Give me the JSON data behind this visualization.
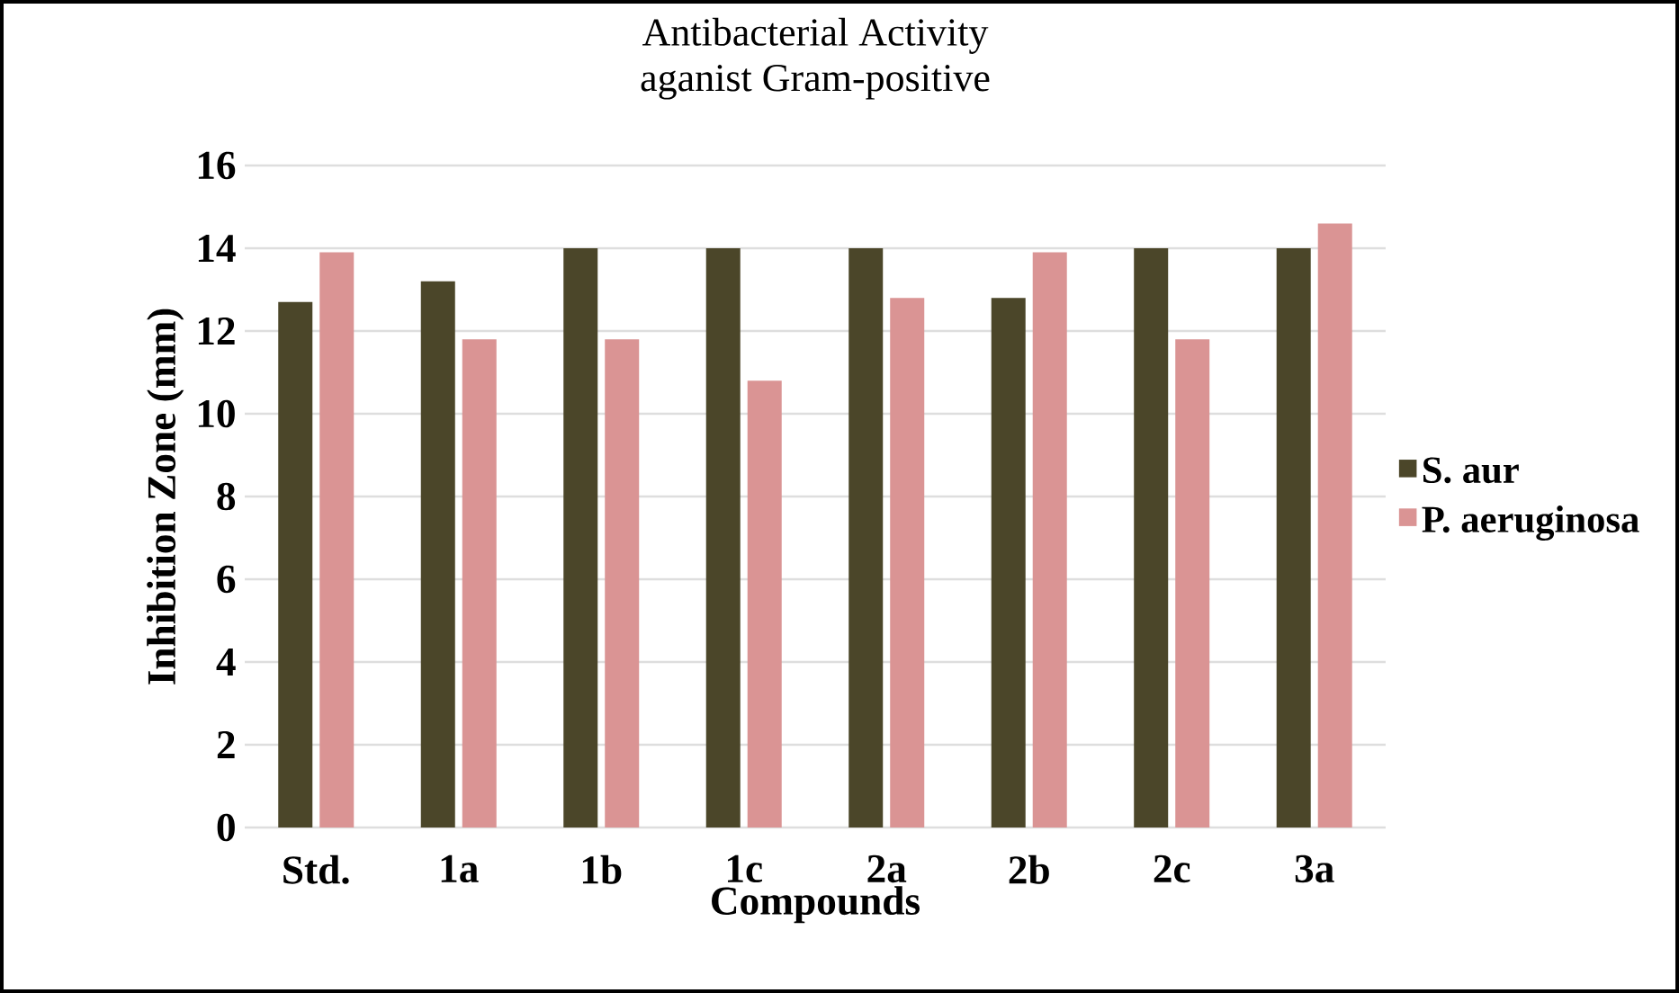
{
  "chart_data": {
    "type": "bar",
    "title": "Antibacterial Activity",
    "subtitle": "aganist Gram-positive",
    "xlabel": "Compounds",
    "ylabel": "Inhibition Zone (mm)",
    "categories": [
      "Std.",
      "1a",
      "1b",
      "1c",
      "2a",
      "2b",
      "2c",
      "3a"
    ],
    "series": [
      {
        "name": "S. aur",
        "color": "#4b4629",
        "values": [
          12.7,
          13.2,
          14.0,
          14.0,
          14.0,
          12.8,
          14.0,
          14.0
        ]
      },
      {
        "name": "P. aeruginosa",
        "color": "#da9494",
        "values": [
          13.9,
          11.8,
          11.8,
          10.8,
          12.8,
          13.9,
          11.8,
          14.6
        ]
      }
    ],
    "ylim": [
      0,
      16
    ],
    "yticks": [
      0,
      2,
      4,
      6,
      8,
      10,
      12,
      14,
      16
    ],
    "grid": "y",
    "legend": "right"
  }
}
